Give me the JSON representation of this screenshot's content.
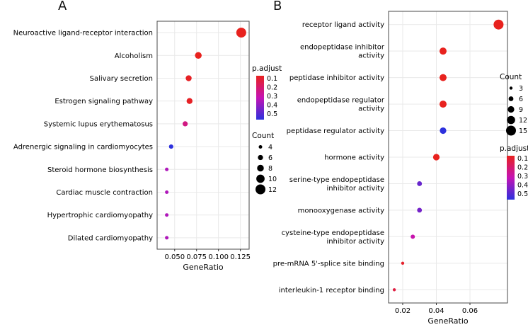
{
  "figure": {
    "background": "#ffffff"
  },
  "colors": {
    "p_low": "#e8221e",
    "p_mid": "#c513b4",
    "p_high": "#2d31dd",
    "grid": "#e9e9e9",
    "panel_border": "#4a4a4a",
    "tick": "#333333",
    "text": "#000000"
  },
  "chart_data": [
    {
      "type": "scatter",
      "panel_label": "A",
      "title": "",
      "xlabel": "GeneRatio",
      "ylabel": "",
      "grid": true,
      "legend_position": "right",
      "xlim": [
        0.03,
        0.135
      ],
      "x_ticks": [
        0.05,
        0.075,
        0.1,
        0.125
      ],
      "x_tick_labels": [
        "0.050",
        "0.075",
        "0.100",
        "0.125"
      ],
      "categories": [
        "Neuroactive ligand-receptor interaction",
        "Alcoholism",
        "Salivary secretion",
        "Estrogen signaling pathway",
        "Systemic lupus erythematosus",
        "Adrenergic signaling in cardiomyocytes",
        "Steroid hormone biosynthesis",
        "Cardiac muscle contraction",
        "Hypertrophic cardiomyopathy",
        "Dilated cardiomyopathy"
      ],
      "gene_ratio": [
        0.126,
        0.077,
        0.066,
        0.067,
        0.062,
        0.046,
        0.041,
        0.041,
        0.041,
        0.041
      ],
      "count": [
        12,
        8,
        7,
        7,
        6,
        5,
        4,
        4,
        4,
        4
      ],
      "p_adjust": [
        0.03,
        0.06,
        0.09,
        0.09,
        0.22,
        0.5,
        0.32,
        0.32,
        0.32,
        0.32
      ],
      "legends": {
        "order": [
          "p_adjust",
          "count"
        ],
        "p_adjust": {
          "title": "p.adjust",
          "tick_labels": [
            "0.1",
            "0.2",
            "0.3",
            "0.4",
            "0.5"
          ]
        },
        "count": {
          "title": "Count",
          "values": [
            4,
            6,
            8,
            10,
            12
          ]
        }
      }
    },
    {
      "type": "scatter",
      "panel_label": "B",
      "title": "",
      "xlabel": "GeneRatio",
      "ylabel": "",
      "grid": true,
      "legend_position": "right",
      "xlim": [
        0.0116,
        0.0823
      ],
      "x_ticks": [
        0.02,
        0.04,
        0.06
      ],
      "x_tick_labels": [
        "0.02",
        "0.04",
        "0.06"
      ],
      "categories": [
        "receptor ligand activity",
        "endopeptidase inhibitor\nactivity",
        "peptidase inhibitor activity",
        "endopeptidase regulator\nactivity",
        "peptidase regulator activity",
        "hormone activity",
        "serine-type endopeptidase\ninhibitor activity",
        "monooxygenase activity",
        "cysteine-type endopeptidase\ninhibitor activity",
        "pre-mRNA 5'-splice site binding",
        "interleukin-1 receptor binding"
      ],
      "gene_ratio": [
        0.077,
        0.044,
        0.044,
        0.044,
        0.044,
        0.04,
        0.03,
        0.03,
        0.026,
        0.02,
        0.015
      ],
      "count": [
        15,
        10,
        10,
        10,
        9,
        9,
        6,
        6,
        5,
        3,
        3
      ],
      "p_adjust": [
        0.02,
        0.05,
        0.05,
        0.06,
        0.5,
        0.08,
        0.42,
        0.4,
        0.28,
        0.1,
        0.13
      ],
      "legends": {
        "order": [
          "count",
          "p_adjust"
        ],
        "count": {
          "title": "Count",
          "values": [
            3,
            6,
            9,
            12,
            15
          ]
        },
        "p_adjust": {
          "title": "p.adjust",
          "tick_labels": [
            "0.1",
            "0.2",
            "0.3",
            "0.4",
            "0.5"
          ]
        }
      }
    }
  ]
}
